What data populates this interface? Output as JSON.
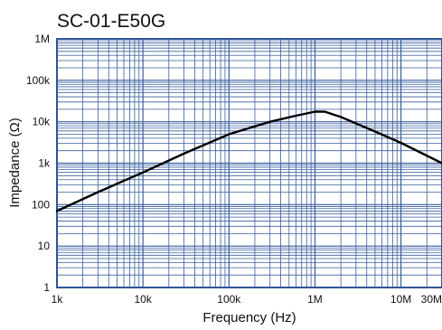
{
  "chart_data": {
    "type": "line",
    "title": "SC-01-E50G",
    "xlabel": "Frequency (Hz)",
    "ylabel": "Impedance (Ω)",
    "x_scale": "log",
    "y_scale": "log",
    "xlim": [
      1000,
      30000000
    ],
    "ylim": [
      1,
      1000000
    ],
    "grid": true,
    "x_ticks": [
      {
        "value": 1000,
        "label": "1k"
      },
      {
        "value": 10000,
        "label": "10k"
      },
      {
        "value": 100000,
        "label": "100k"
      },
      {
        "value": 1000000,
        "label": "1M"
      },
      {
        "value": 10000000,
        "label": "10M"
      },
      {
        "value": 30000000,
        "label": "30M"
      }
    ],
    "y_ticks": [
      {
        "value": 1,
        "label": "1"
      },
      {
        "value": 10,
        "label": "10"
      },
      {
        "value": 100,
        "label": "100"
      },
      {
        "value": 1000,
        "label": "1k"
      },
      {
        "value": 10000,
        "label": "10k"
      },
      {
        "value": 100000,
        "label": "100k"
      },
      {
        "value": 1000000,
        "label": "1M"
      }
    ],
    "series": [
      {
        "color": "#000000",
        "points": [
          {
            "x": 1000,
            "y": 70
          },
          {
            "x": 3000,
            "y": 200
          },
          {
            "x": 10000,
            "y": 600
          },
          {
            "x": 30000,
            "y": 1700
          },
          {
            "x": 100000,
            "y": 5000
          },
          {
            "x": 300000,
            "y": 10000
          },
          {
            "x": 600000,
            "y": 14000
          },
          {
            "x": 1000000,
            "y": 17500
          },
          {
            "x": 1300000,
            "y": 17500
          },
          {
            "x": 2000000,
            "y": 13000
          },
          {
            "x": 5000000,
            "y": 5800
          },
          {
            "x": 10000000,
            "y": 3100
          },
          {
            "x": 30000000,
            "y": 1000
          }
        ]
      }
    ],
    "colors": {
      "grid": "#3a5f9e",
      "frame": "#2e5596",
      "line": "#000000"
    }
  }
}
